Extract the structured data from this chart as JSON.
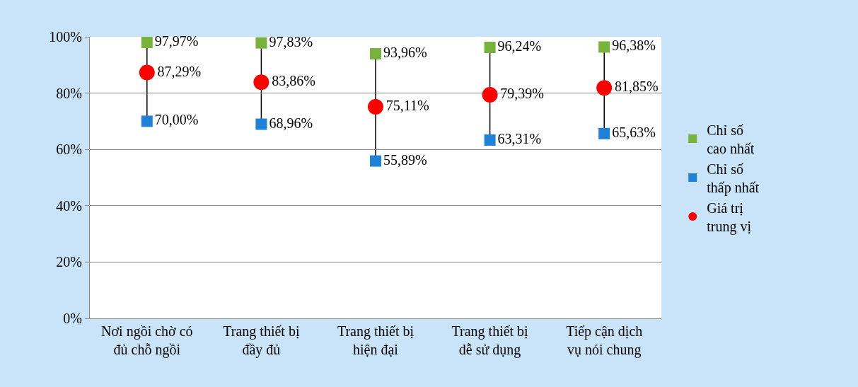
{
  "chart_data": {
    "type": "scatter",
    "categories": [
      "Nơi ngồi chờ có đủ chỗ ngồi",
      "Trang thiết bị đầy đủ",
      "Trang thiết bị hiện đại",
      "Trang thiết bị dễ sử dụng",
      "Tiếp cận dịch vụ nói chung"
    ],
    "series": [
      {
        "name": "Chỉ số cao nhất",
        "color": "#77b33a",
        "marker": "square",
        "values": [
          97.97,
          97.83,
          93.96,
          96.24,
          96.38
        ],
        "value_labels": [
          "97,97%",
          "97,83%",
          "93,96%",
          "96,24%",
          "96,38%"
        ]
      },
      {
        "name": "Chỉ số thấp nhất",
        "color": "#1f82d8",
        "marker": "square",
        "values": [
          70.0,
          68.96,
          55.89,
          63.31,
          65.63
        ],
        "value_labels": [
          "70,00%",
          "68,96%",
          "55,89%",
          "63,31%",
          "65,63%"
        ]
      },
      {
        "name": "Giá trị trung vị",
        "color": "#ff0000",
        "marker": "circle",
        "values": [
          87.29,
          83.86,
          75.11,
          79.39,
          81.85
        ],
        "value_labels": [
          "87,29%",
          "83,86%",
          "75,11%",
          "79,39%",
          "81,85%"
        ]
      }
    ],
    "ylim": [
      0,
      100
    ],
    "yticks": [
      {
        "value": 0,
        "label": "0%"
      },
      {
        "value": 20,
        "label": "20%"
      },
      {
        "value": 40,
        "label": "40%"
      },
      {
        "value": 60,
        "label": "60%"
      },
      {
        "value": 80,
        "label": "80%"
      },
      {
        "value": 100,
        "label": "100%"
      }
    ],
    "grid": "y",
    "legend": "right"
  }
}
